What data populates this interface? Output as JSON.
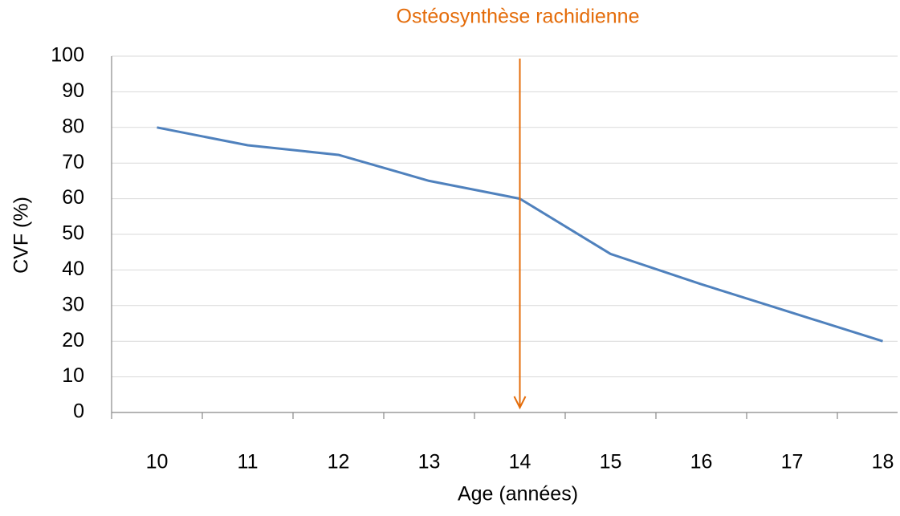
{
  "chart_data": {
    "type": "line",
    "annotation": {
      "text": "Ostéosynthèse rachidienne",
      "at": "14",
      "color": "#e46c0a"
    },
    "x_label": "Age (années)",
    "y_label": "CVF (%)",
    "categories": [
      "10",
      "11",
      "12",
      "13",
      "14",
      "15",
      "16",
      "17",
      "18"
    ],
    "series": [
      {
        "color": "#4f81bd",
        "values": [
          80,
          75,
          72.3,
          65,
          60,
          44.5,
          36,
          28,
          20
        ]
      }
    ],
    "ylim": [
      0,
      100
    ],
    "yticks": [
      0,
      10,
      20,
      30,
      40,
      50,
      60,
      70,
      80,
      90,
      100
    ],
    "grid": true
  }
}
